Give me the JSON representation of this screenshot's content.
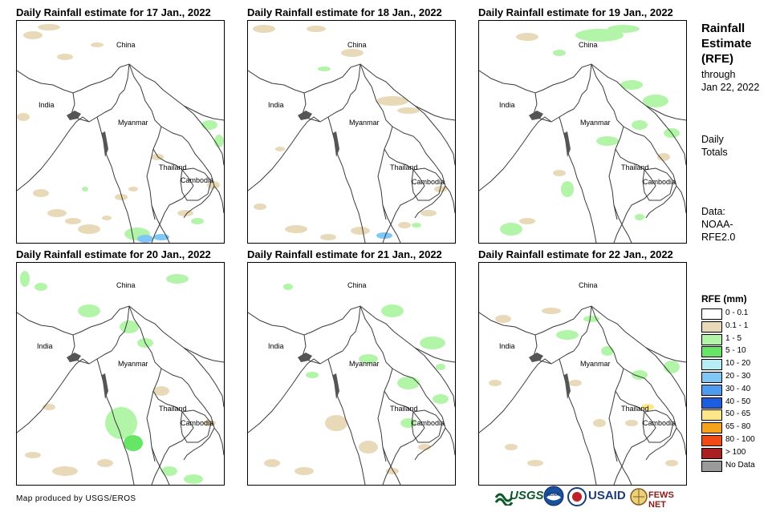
{
  "panels": [
    {
      "title": "Daily Rainfall estimate for 17 Jan., 2022"
    },
    {
      "title": "Daily Rainfall estimate for 18 Jan., 2022"
    },
    {
      "title": "Daily Rainfall estimate for 19 Jan., 2022"
    },
    {
      "title": "Daily Rainfall estimate for 20 Jan., 2022"
    },
    {
      "title": "Daily Rainfall estimate for 21 Jan., 2022"
    },
    {
      "title": "Daily Rainfall estimate for 22 Jan., 2022"
    }
  ],
  "map_labels": {
    "china": "China",
    "india": "India",
    "myanmar": "Myanmar",
    "thailand": "Thailand",
    "cambodia": "Cambodia"
  },
  "sidebar": {
    "title_line1": "Rainfall",
    "title_line2": "Estimate",
    "title_line3": "(RFE)",
    "through": "through",
    "date": "Jan 22, 2022",
    "daily": "Daily",
    "totals": "Totals",
    "data_label": "Data:",
    "data_line2": "NOAA-",
    "data_line3": "RFE2.0"
  },
  "legend": {
    "title": "RFE (mm)",
    "items": [
      {
        "label": "0 - 0.1",
        "color": "#ffffff"
      },
      {
        "label": "0.1 - 1",
        "color": "#e8d9b8"
      },
      {
        "label": "1 - 5",
        "color": "#b3f5a8"
      },
      {
        "label": "5 - 10",
        "color": "#66e566"
      },
      {
        "label": "10 - 20",
        "color": "#b7eef6"
      },
      {
        "label": "20 - 30",
        "color": "#80c7f5"
      },
      {
        "label": "30 - 40",
        "color": "#4d9cf0"
      },
      {
        "label": "40 - 50",
        "color": "#1d5de0"
      },
      {
        "label": "50 - 65",
        "color": "#fde58a"
      },
      {
        "label": "65 - 80",
        "color": "#f7a21c"
      },
      {
        "label": "80 - 100",
        "color": "#f24a14"
      },
      {
        "label": "> 100",
        "color": "#a82020"
      },
      {
        "label": "No Data",
        "color": "#9a9a9a"
      }
    ]
  },
  "credit": "Map produced by USGS/EROS",
  "logos": {
    "usgs": "USGS",
    "noaa": "NOAA",
    "usaid": "USAID",
    "fewsnet": "FEWS NET"
  },
  "colors": {
    "border": "#3a3a3a",
    "coast_fill": "#555555"
  }
}
